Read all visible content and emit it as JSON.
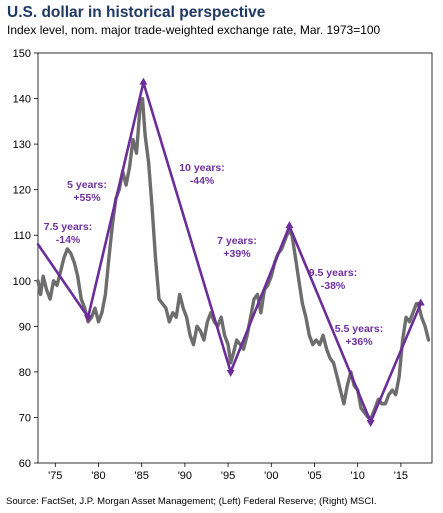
{
  "title": "U.S. dollar in historical perspective",
  "subtitle": "Index level, nom. major trade-weighted exchange rate, Mar. 1973=100",
  "source": "Source: FactSet, J.P. Morgan Asset Management; (Left) Federal Reserve; (Right) MSCI.",
  "colors": {
    "title": "#1f3864",
    "series": "#6d6d6d",
    "trend": "#6b2d98",
    "annotation": "#7030a0"
  },
  "chart_data": {
    "type": "line",
    "ylim": [
      60,
      150
    ],
    "xlim": [
      1973,
      2018.6
    ],
    "yticks": [
      60,
      70,
      80,
      90,
      100,
      110,
      120,
      130,
      140,
      150
    ],
    "xticks": [
      {
        "value": 1975,
        "label": "'75"
      },
      {
        "value": 1980,
        "label": "'80"
      },
      {
        "value": 1985,
        "label": "'85"
      },
      {
        "value": 1990,
        "label": "'90"
      },
      {
        "value": 1995,
        "label": "'95"
      },
      {
        "value": 2000,
        "label": "'00"
      },
      {
        "value": 2005,
        "label": "'05"
      },
      {
        "value": 2010,
        "label": "'10"
      },
      {
        "value": 2015,
        "label": "'15"
      }
    ],
    "grid": false,
    "series": [
      {
        "x": [
          1973.0,
          1973.3,
          1973.6,
          1974.0,
          1974.4,
          1974.8,
          1975.2,
          1975.6,
          1976.0,
          1976.4,
          1976.8,
          1977.2,
          1977.6,
          1978.0,
          1978.4,
          1978.8,
          1979.2,
          1979.6,
          1980.0,
          1980.4,
          1980.8,
          1981.2,
          1981.6,
          1982.0,
          1982.4,
          1982.8,
          1983.2,
          1983.6,
          1984.0,
          1984.4,
          1984.8,
          1985.1,
          1985.4,
          1985.8,
          1986.2,
          1986.6,
          1987.0,
          1987.4,
          1987.8,
          1988.2,
          1988.6,
          1989.0,
          1989.4,
          1989.8,
          1990.2,
          1990.6,
          1991.0,
          1991.4,
          1991.8,
          1992.2,
          1992.6,
          1993.0,
          1993.4,
          1993.8,
          1994.2,
          1994.6,
          1995.0,
          1995.3,
          1995.6,
          1996.0,
          1996.4,
          1996.8,
          1997.2,
          1997.6,
          1998.0,
          1998.4,
          1998.8,
          1999.2,
          1999.6,
          2000.0,
          2000.4,
          2000.8,
          2001.2,
          2001.6,
          2002.0,
          2002.4,
          2002.8,
          2003.2,
          2003.6,
          2004.0,
          2004.4,
          2004.8,
          2005.2,
          2005.6,
          2006.0,
          2006.4,
          2006.8,
          2007.2,
          2007.6,
          2008.0,
          2008.4,
          2008.8,
          2009.2,
          2009.6,
          2010.0,
          2010.4,
          2010.8,
          2011.2,
          2011.6,
          2012.0,
          2012.4,
          2012.8,
          2013.2,
          2013.6,
          2014.0,
          2014.4,
          2014.8,
          2015.2,
          2015.6,
          2016.0,
          2016.4,
          2016.8,
          2017.0,
          2017.4,
          2017.8,
          2018.2
        ],
        "values": [
          100,
          97,
          101,
          98,
          96,
          100,
          99,
          102,
          105,
          107,
          106,
          104,
          101,
          96,
          94,
          91,
          92,
          94,
          91,
          93,
          97,
          105,
          112,
          118,
          120,
          124,
          121,
          125,
          131,
          128,
          138,
          140,
          132,
          126,
          116,
          105,
          96,
          95,
          94,
          91,
          93,
          92,
          97,
          94,
          92,
          88,
          86,
          90,
          89,
          87,
          91,
          93,
          91,
          90,
          92,
          88,
          86,
          82,
          84,
          87,
          86,
          85,
          88,
          92,
          96,
          97,
          93,
          98,
          99,
          101,
          104,
          106,
          107,
          109,
          111,
          110,
          105,
          100,
          95,
          92,
          88,
          86,
          87,
          86,
          88,
          85,
          83,
          82,
          79,
          76,
          73,
          77,
          80,
          77,
          76,
          72,
          71,
          70,
          70,
          72,
          74,
          73,
          73,
          75,
          76,
          75,
          79,
          87,
          92,
          91,
          93,
          95,
          95,
          92,
          90,
          87
        ]
      }
    ],
    "trend_lines": [
      {
        "x": [
          1973.0,
          1978.8
        ],
        "values": [
          108.0,
          92.0
        ],
        "label_line1": "7.5 years:",
        "label_line2": "-14%"
      },
      {
        "x": [
          1978.8,
          1985.2
        ],
        "values": [
          92.0,
          143.5
        ],
        "label_line1": "5 years:",
        "label_line2": "+55%"
      },
      {
        "x": [
          1985.2,
          1995.3
        ],
        "values": [
          143.5,
          80.0
        ],
        "label_line1": "10 years:",
        "label_line2": "-44%"
      },
      {
        "x": [
          1995.3,
          2002.1
        ],
        "values": [
          80.0,
          112.0
        ],
        "label_line1": "7 years:",
        "label_line2": "+39%"
      },
      {
        "x": [
          2002.1,
          2011.5
        ],
        "values": [
          112.0,
          69.0
        ],
        "label_line1": "9.5 years:",
        "label_line2": "-38%"
      },
      {
        "x": [
          2011.5,
          2017.3
        ],
        "values": [
          69.0,
          95.0
        ],
        "label_line1": "5.5 years:",
        "label_line2": "+36%"
      }
    ]
  }
}
